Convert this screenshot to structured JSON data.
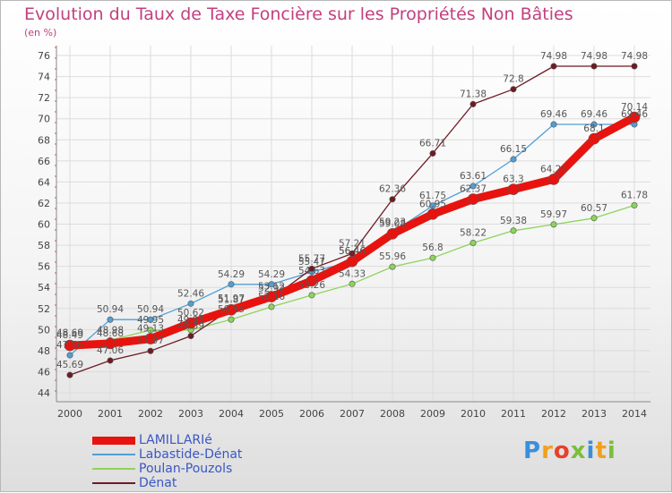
{
  "title": "Evolution du Taux de Taxe Foncière sur les Propriétés Non Bâties",
  "subtitle": "(en %)",
  "brand": {
    "text": "Proxiti",
    "letter_colors": [
      "#3a8fd9",
      "#f0a020",
      "#e8402a",
      "#7bbf3a",
      "#3a8fd9",
      "#f0a020",
      "#7bbf3a"
    ]
  },
  "chart_data": {
    "type": "line",
    "title": "Evolution du Taux de Taxe Foncière sur les Propriétés Non Bâties",
    "ylabel": "(en %)",
    "x": [
      "2000",
      "2001",
      "2002",
      "2003",
      "2004",
      "2005",
      "2006",
      "2007",
      "2008",
      "2009",
      "2010",
      "2011",
      "2012",
      "2013",
      "2014"
    ],
    "ylim": [
      44,
      76
    ],
    "yticks": [
      44,
      46,
      48,
      50,
      52,
      54,
      56,
      58,
      60,
      62,
      64,
      66,
      68,
      70,
      72,
      74,
      76
    ],
    "grid": true,
    "legend_position": "bottom-left",
    "series": [
      {
        "name": "LAMILLARIé",
        "color": "#e8130e",
        "values": [
          48.49,
          48.68,
          49.13,
          50.62,
          51.87,
          53.12,
          54.63,
          56.46,
          59.08,
          60.95,
          62.37,
          63.3,
          64.25,
          68.1,
          70.14
        ]
      },
      {
        "name": "Labastide-Dénat",
        "color": "#4f9fd5",
        "values": [
          47.56,
          50.94,
          50.94,
          52.46,
          54.29,
          54.29,
          55.47,
          56.46,
          59.23,
          61.75,
          63.61,
          66.15,
          69.46,
          69.46,
          69.46
        ]
      },
      {
        "name": "Poulan-Pouzols",
        "color": "#8cd45a",
        "values": [
          48.69,
          48.98,
          49.95,
          49.95,
          50.95,
          52.16,
          53.26,
          54.33,
          55.96,
          56.8,
          58.22,
          59.38,
          59.97,
          60.57,
          61.78
        ]
      },
      {
        "name": "Dénat",
        "color": "#6e1b24",
        "values": [
          45.69,
          47.06,
          47.97,
          49.39,
          51.97,
          52.92,
          55.77,
          57.21,
          62.36,
          66.71,
          71.38,
          72.8,
          74.98,
          74.98,
          74.98
        ]
      }
    ]
  }
}
